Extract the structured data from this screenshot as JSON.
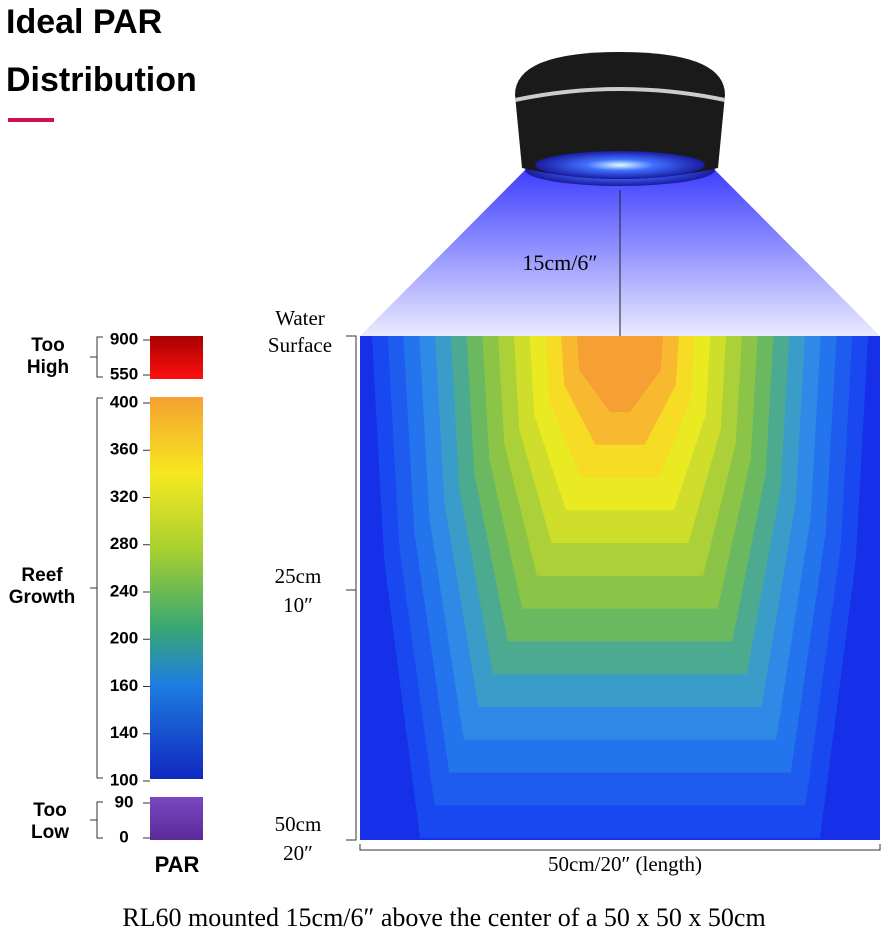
{
  "header": {
    "title_lines": [
      "Ideal PAR",
      "Distribution"
    ]
  },
  "scale": {
    "too_high": {
      "label_lines": [
        "Too",
        "High"
      ],
      "ticks": [
        "900",
        "550"
      ]
    },
    "reef_growth": {
      "label_lines": [
        "Reef",
        "Growth"
      ],
      "ticks": [
        "400",
        "360",
        "320",
        "280",
        "240",
        "200",
        "160",
        "140",
        "100"
      ]
    },
    "too_low": {
      "label_lines": [
        "Too",
        "Low"
      ],
      "ticks": [
        "90",
        "0"
      ]
    },
    "axis_label": "PAR"
  },
  "diagram": {
    "mount_height": "15cm/6″",
    "water_surface_lines": [
      "Water",
      "Surface"
    ],
    "mid_depth_lines": [
      "25cm",
      "10″"
    ],
    "bottom_depth_lines": [
      "50cm",
      "20″"
    ],
    "length_label": "50cm/20″ (length)"
  },
  "caption": "RL60 mounted 15cm/6″ above the center of a 50 x 50 x 50cm"
}
